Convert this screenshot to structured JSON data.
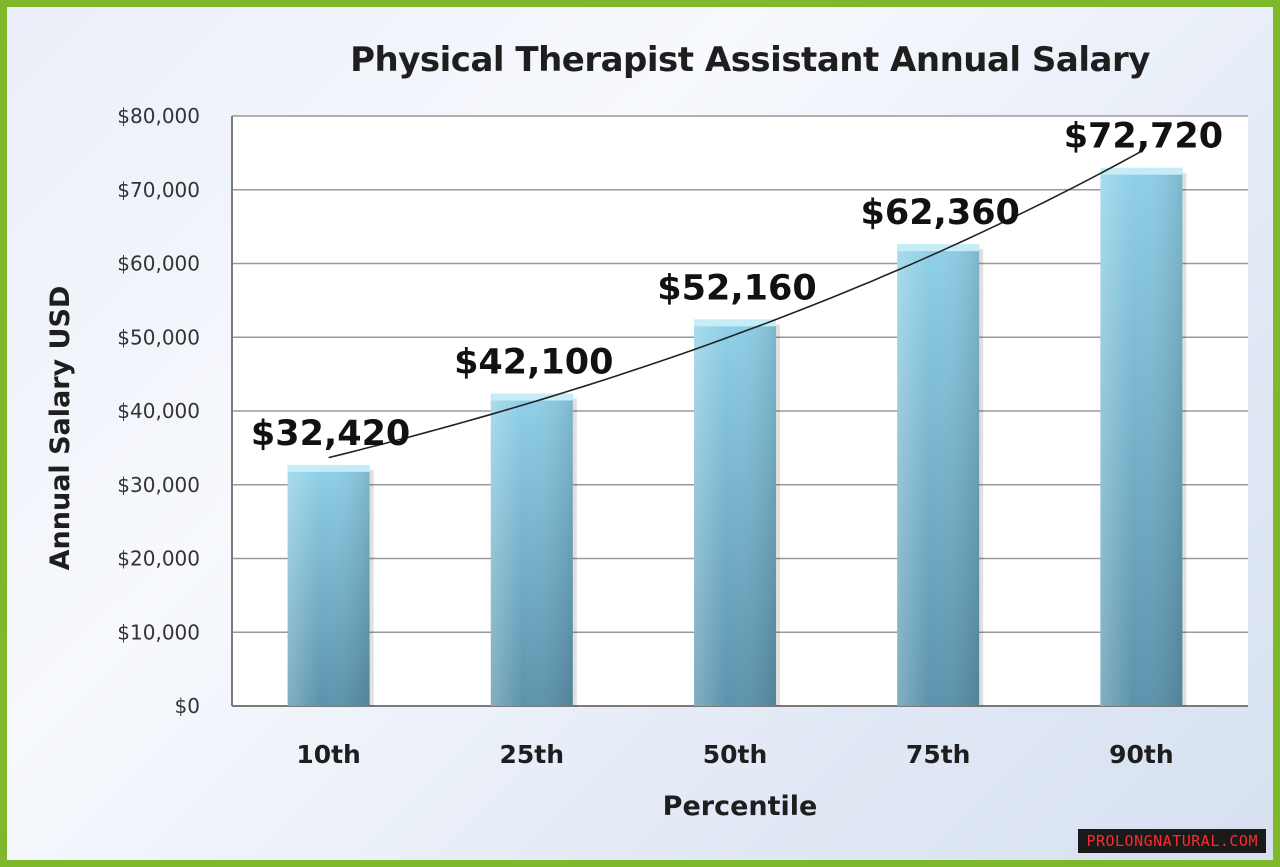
{
  "chart_data": {
    "type": "bar",
    "title": "Physical Therapist Assistant Annual Salary",
    "xlabel": "Percentile",
    "ylabel": "Annual Salary USD",
    "categories": [
      "10th",
      "25th",
      "50th",
      "75th",
      "90th"
    ],
    "values": [
      32420,
      42100,
      52160,
      62360,
      72720
    ],
    "data_labels": [
      "$32,420",
      "$42,100",
      "$52,160",
      "$62,360",
      "$72,720"
    ],
    "ylim": [
      0,
      80000
    ],
    "yticks": [
      0,
      10000,
      20000,
      30000,
      40000,
      50000,
      60000,
      70000,
      80000
    ],
    "ytick_labels": [
      "$0",
      "$10,000",
      "$20,000",
      "$30,000",
      "$40,000",
      "$50,000",
      "$60,000",
      "$70,000",
      "$80,000"
    ],
    "trendline": true,
    "grid": true,
    "legend": "none",
    "bar_color": "#7fbfd8"
  },
  "watermark": "PROLONGNATURAL.COM"
}
